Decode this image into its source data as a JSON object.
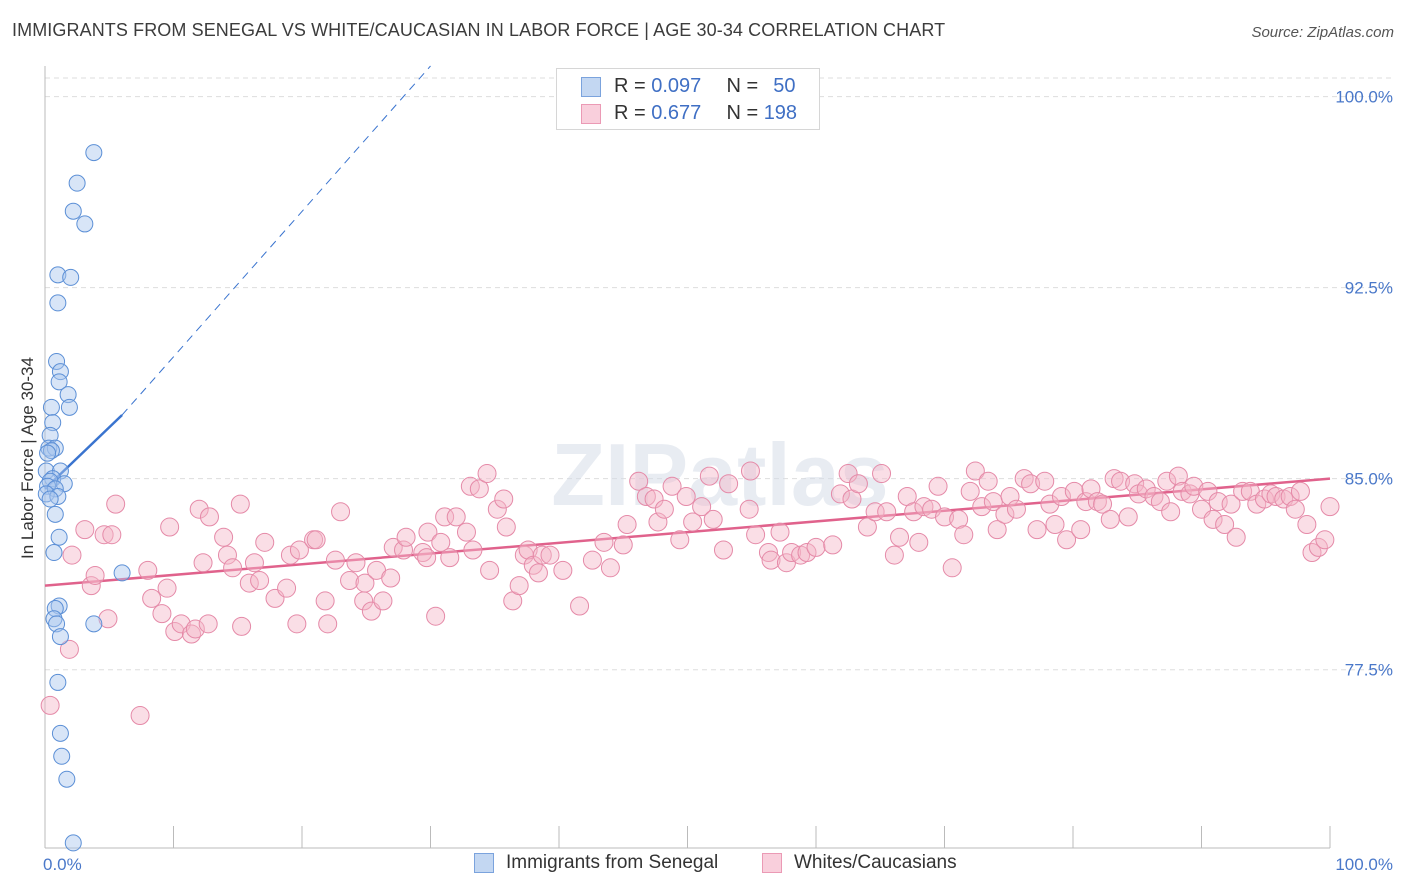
{
  "title": "IMMIGRANTS FROM SENEGAL VS WHITE/CAUCASIAN IN LABOR FORCE | AGE 30-34 CORRELATION CHART",
  "source": "Source: ZipAtlas.com",
  "watermark": "ZIPatlas",
  "legend": {
    "rows": [
      {
        "r_label": "R =",
        "r_value": "0.097",
        "n_label": "N =",
        "n_value": "50"
      },
      {
        "r_label": "R =",
        "r_value": "0.677",
        "n_label": "N =",
        "n_value": "198"
      }
    ]
  },
  "bottom_legend": {
    "series1": "Immigrants from Senegal",
    "series2": "Whites/Caucasians"
  },
  "colors": {
    "blue_fill": "#a9c6ee",
    "blue_stroke": "#5b8fd6",
    "blue_line": "#3a74cf",
    "pink_fill": "#f4b5c8",
    "pink_stroke": "#e58aa8",
    "pink_line": "#e0628c",
    "grid": "#dddddd",
    "tick_text": "#4a78c9"
  },
  "chart_data": {
    "type": "scatter",
    "title": "IMMIGRANTS FROM SENEGAL VS WHITE/CAUCASIAN IN LABOR FORCE | AGE 30-34 CORRELATION CHART",
    "xlabel": "",
    "ylabel": "In Labor Force | Age 30-34",
    "xlim": [
      0,
      100
    ],
    "ylim": [
      70.5,
      101.2
    ],
    "x_tick_labels": [
      "0.0%",
      "100.0%"
    ],
    "y_ticks": [
      77.5,
      85.0,
      92.5,
      100.0
    ],
    "y_tick_labels": [
      "77.5%",
      "85.0%",
      "92.5%",
      "100.0%"
    ],
    "grid": true,
    "series": [
      {
        "name": "Immigrants from Senegal",
        "R": 0.097,
        "N": 50,
        "trend": {
          "x0": 0.0,
          "y0": 84.6,
          "x1": 6.0,
          "y1": 87.5,
          "dash_to_x": 30.0,
          "dash_to_y": 101.2
        },
        "points": [
          [
            3.8,
            97.8
          ],
          [
            2.5,
            96.6
          ],
          [
            2.2,
            95.5
          ],
          [
            3.1,
            95.0
          ],
          [
            1.0,
            93.0
          ],
          [
            2.0,
            92.9
          ],
          [
            1.0,
            91.9
          ],
          [
            0.9,
            89.6
          ],
          [
            1.2,
            89.2
          ],
          [
            1.1,
            88.8
          ],
          [
            1.8,
            88.3
          ],
          [
            1.9,
            87.8
          ],
          [
            0.5,
            87.8
          ],
          [
            0.6,
            87.2
          ],
          [
            0.4,
            86.7
          ],
          [
            0.3,
            86.2
          ],
          [
            0.8,
            86.2
          ],
          [
            0.5,
            86.1
          ],
          [
            0.2,
            86.0
          ],
          [
            0.1,
            85.3
          ],
          [
            1.2,
            85.3
          ],
          [
            0.6,
            85.0
          ],
          [
            0.4,
            84.9
          ],
          [
            0.2,
            84.7
          ],
          [
            1.5,
            84.8
          ],
          [
            0.8,
            84.6
          ],
          [
            0.1,
            84.4
          ],
          [
            1.0,
            84.3
          ],
          [
            0.4,
            84.2
          ],
          [
            0.8,
            83.6
          ],
          [
            1.1,
            82.7
          ],
          [
            0.7,
            82.1
          ],
          [
            6.0,
            81.3
          ],
          [
            1.1,
            80.0
          ],
          [
            0.8,
            79.9
          ],
          [
            0.7,
            79.5
          ],
          [
            0.9,
            79.3
          ],
          [
            3.8,
            79.3
          ],
          [
            1.2,
            78.8
          ],
          [
            1.0,
            77.0
          ],
          [
            1.2,
            75.0
          ],
          [
            1.3,
            74.1
          ],
          [
            1.7,
            73.2
          ],
          [
            2.2,
            70.7
          ]
        ]
      },
      {
        "name": "Whites/Caucasians",
        "R": 0.677,
        "N": 198,
        "trend": {
          "x0": 0.0,
          "y0": 80.8,
          "x1": 100.0,
          "y1": 85.0
        },
        "points": [
          [
            0.4,
            76.1
          ],
          [
            7.4,
            75.7
          ],
          [
            1.9,
            78.3
          ],
          [
            2.1,
            82.0
          ],
          [
            3.6,
            80.8
          ],
          [
            4.6,
            82.8
          ],
          [
            4.9,
            79.5
          ],
          [
            5.2,
            82.8
          ],
          [
            3.1,
            83.0
          ],
          [
            3.9,
            81.2
          ],
          [
            5.5,
            84.0
          ],
          [
            8.0,
            81.4
          ],
          [
            8.3,
            80.3
          ],
          [
            9.1,
            79.7
          ],
          [
            9.5,
            80.7
          ],
          [
            9.7,
            83.1
          ],
          [
            10.1,
            79.0
          ],
          [
            10.6,
            79.3
          ],
          [
            11.4,
            78.9
          ],
          [
            11.7,
            79.1
          ],
          [
            12.3,
            81.7
          ],
          [
            12.7,
            79.3
          ],
          [
            12.0,
            83.8
          ],
          [
            12.8,
            83.5
          ],
          [
            13.9,
            82.7
          ],
          [
            14.2,
            82.0
          ],
          [
            14.6,
            81.5
          ],
          [
            15.2,
            84.0
          ],
          [
            15.3,
            79.2
          ],
          [
            15.9,
            80.9
          ],
          [
            16.3,
            81.7
          ],
          [
            16.7,
            81.0
          ],
          [
            17.1,
            82.5
          ],
          [
            17.9,
            80.3
          ],
          [
            18.8,
            80.7
          ],
          [
            19.1,
            82.0
          ],
          [
            19.6,
            79.3
          ],
          [
            19.8,
            82.2
          ],
          [
            20.9,
            82.6
          ],
          [
            21.1,
            82.6
          ],
          [
            21.8,
            80.2
          ],
          [
            22.0,
            79.3
          ],
          [
            22.6,
            81.8
          ],
          [
            23.0,
            83.7
          ],
          [
            23.7,
            81.0
          ],
          [
            24.2,
            81.7
          ],
          [
            24.8,
            80.2
          ],
          [
            24.9,
            80.9
          ],
          [
            25.4,
            79.8
          ],
          [
            25.8,
            81.4
          ],
          [
            26.3,
            80.2
          ],
          [
            26.9,
            81.1
          ],
          [
            27.1,
            82.3
          ],
          [
            27.9,
            82.2
          ],
          [
            28.1,
            82.7
          ],
          [
            29.4,
            82.1
          ],
          [
            29.7,
            81.9
          ],
          [
            29.8,
            82.9
          ],
          [
            30.4,
            79.6
          ],
          [
            30.8,
            82.5
          ],
          [
            31.1,
            83.5
          ],
          [
            31.5,
            81.9
          ],
          [
            32.0,
            83.5
          ],
          [
            32.8,
            82.9
          ],
          [
            33.3,
            82.2
          ],
          [
            33.1,
            84.7
          ],
          [
            33.8,
            84.6
          ],
          [
            34.4,
            85.2
          ],
          [
            34.6,
            81.4
          ],
          [
            35.2,
            83.8
          ],
          [
            35.7,
            84.2
          ],
          [
            35.9,
            83.1
          ],
          [
            36.4,
            80.2
          ],
          [
            36.9,
            80.8
          ],
          [
            37.3,
            82.0
          ],
          [
            37.6,
            82.2
          ],
          [
            38.0,
            81.6
          ],
          [
            38.4,
            81.3
          ],
          [
            38.7,
            82.0
          ],
          [
            39.3,
            82.0
          ],
          [
            40.3,
            81.4
          ],
          [
            41.6,
            80.0
          ],
          [
            42.6,
            81.8
          ],
          [
            43.5,
            82.5
          ],
          [
            44.0,
            81.5
          ],
          [
            45.0,
            82.4
          ],
          [
            45.3,
            83.2
          ],
          [
            46.2,
            84.9
          ],
          [
            46.8,
            84.3
          ],
          [
            47.4,
            84.2
          ],
          [
            47.7,
            83.3
          ],
          [
            48.2,
            83.8
          ],
          [
            48.8,
            84.7
          ],
          [
            49.4,
            82.6
          ],
          [
            49.9,
            84.3
          ],
          [
            50.4,
            83.3
          ],
          [
            51.1,
            83.9
          ],
          [
            51.7,
            85.1
          ],
          [
            52.0,
            83.4
          ],
          [
            52.8,
            82.2
          ],
          [
            53.2,
            84.8
          ],
          [
            54.8,
            83.8
          ],
          [
            54.9,
            85.3
          ],
          [
            55.3,
            82.8
          ],
          [
            56.3,
            82.1
          ],
          [
            56.5,
            81.8
          ],
          [
            57.2,
            82.9
          ],
          [
            57.7,
            81.7
          ],
          [
            58.1,
            82.1
          ],
          [
            58.8,
            82.0
          ],
          [
            59.3,
            82.1
          ],
          [
            60.0,
            82.3
          ],
          [
            61.3,
            82.4
          ],
          [
            61.9,
            84.4
          ],
          [
            62.5,
            85.2
          ],
          [
            62.8,
            84.2
          ],
          [
            63.3,
            84.8
          ],
          [
            64.0,
            83.1
          ],
          [
            64.6,
            83.7
          ],
          [
            65.1,
            85.2
          ],
          [
            65.5,
            83.7
          ],
          [
            66.1,
            82.0
          ],
          [
            66.5,
            82.7
          ],
          [
            67.1,
            84.3
          ],
          [
            67.6,
            83.7
          ],
          [
            68.0,
            82.5
          ],
          [
            68.4,
            83.9
          ],
          [
            69.0,
            83.8
          ],
          [
            69.5,
            84.7
          ],
          [
            70.0,
            83.5
          ],
          [
            70.6,
            81.5
          ],
          [
            71.1,
            83.4
          ],
          [
            71.5,
            82.8
          ],
          [
            72.0,
            84.5
          ],
          [
            72.4,
            85.3
          ],
          [
            72.9,
            83.9
          ],
          [
            73.4,
            84.9
          ],
          [
            73.8,
            84.1
          ],
          [
            74.1,
            83.0
          ],
          [
            74.7,
            83.6
          ],
          [
            75.1,
            84.3
          ],
          [
            75.6,
            83.8
          ],
          [
            76.2,
            85.0
          ],
          [
            76.7,
            84.8
          ],
          [
            77.2,
            83.0
          ],
          [
            77.8,
            84.9
          ],
          [
            78.2,
            84.0
          ],
          [
            78.6,
            83.2
          ],
          [
            79.1,
            84.3
          ],
          [
            79.5,
            82.6
          ],
          [
            80.1,
            84.5
          ],
          [
            80.6,
            83.0
          ],
          [
            81.0,
            84.1
          ],
          [
            81.4,
            84.6
          ],
          [
            81.9,
            84.1
          ],
          [
            82.3,
            84.0
          ],
          [
            82.9,
            83.4
          ],
          [
            83.2,
            85.0
          ],
          [
            83.7,
            84.9
          ],
          [
            84.3,
            83.5
          ],
          [
            84.8,
            84.8
          ],
          [
            85.1,
            84.4
          ],
          [
            85.7,
            84.6
          ],
          [
            86.3,
            84.3
          ],
          [
            86.8,
            84.1
          ],
          [
            87.3,
            84.9
          ],
          [
            87.6,
            83.7
          ],
          [
            88.2,
            85.1
          ],
          [
            88.5,
            84.5
          ],
          [
            89.1,
            84.4
          ],
          [
            89.4,
            84.7
          ],
          [
            90.0,
            83.8
          ],
          [
            90.5,
            84.5
          ],
          [
            90.9,
            83.4
          ],
          [
            91.3,
            84.1
          ],
          [
            91.8,
            83.2
          ],
          [
            92.3,
            84.0
          ],
          [
            92.7,
            82.7
          ],
          [
            93.2,
            84.5
          ],
          [
            93.8,
            84.5
          ],
          [
            94.3,
            84.0
          ],
          [
            94.9,
            84.2
          ],
          [
            95.4,
            84.4
          ],
          [
            95.8,
            84.3
          ],
          [
            96.4,
            84.2
          ],
          [
            96.9,
            84.3
          ],
          [
            97.3,
            83.8
          ],
          [
            97.7,
            84.5
          ],
          [
            98.2,
            83.2
          ],
          [
            98.6,
            82.1
          ],
          [
            99.1,
            82.3
          ],
          [
            99.6,
            82.6
          ],
          [
            100.0,
            83.9
          ]
        ]
      }
    ]
  }
}
